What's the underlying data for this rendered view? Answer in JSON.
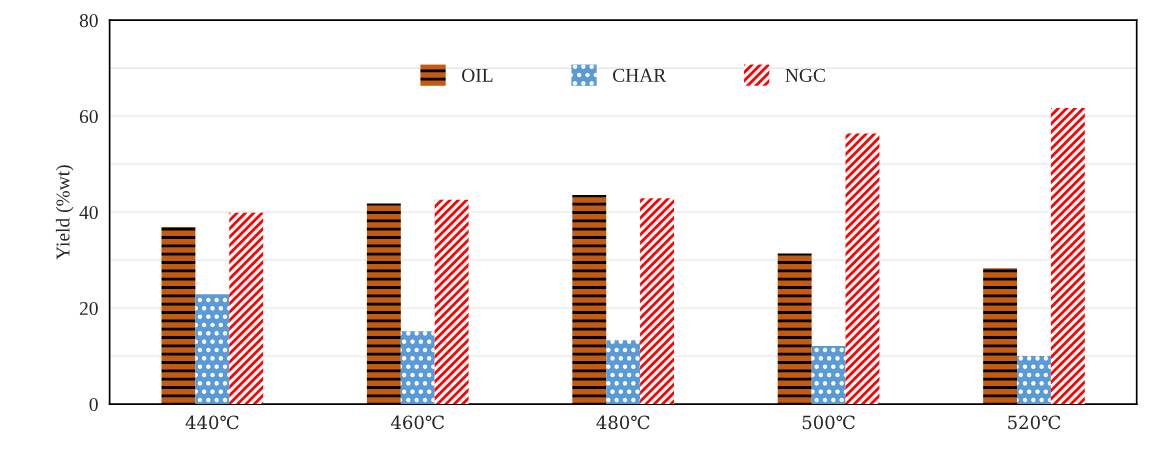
{
  "chart_data": {
    "type": "bar",
    "ylabel": "Yield (%wt)",
    "categories": [
      "440℃",
      "460℃",
      "480℃",
      "500℃",
      "520℃"
    ],
    "series": [
      {
        "name": "OIL",
        "color": "#c55a11",
        "values": [
          36.9,
          41.8,
          43.6,
          31.4,
          28.3
        ]
      },
      {
        "name": "CHAR",
        "color": "#5b9bd5",
        "values": [
          22.9,
          15.2,
          13.3,
          12.1,
          10.0
        ]
      },
      {
        "name": "NGC",
        "color": "#ffffff",
        "values": [
          39.9,
          42.6,
          42.9,
          56.4,
          61.7
        ]
      }
    ],
    "ylim": [
      0,
      80
    ],
    "yticks": [
      0,
      {
        "value": 10,
        "label": null
      },
      20,
      {
        "value": 30,
        "label": null
      },
      40,
      {
        "value": 50,
        "label": null
      },
      60,
      {
        "value": 70,
        "label": null
      },
      80
    ],
    "grid": "y",
    "legend": "top"
  }
}
